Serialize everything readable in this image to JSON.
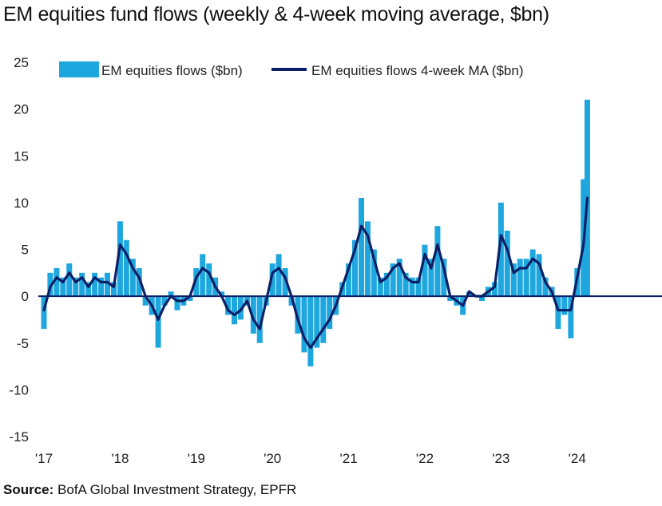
{
  "title": "EM equities fund flows (weekly & 4-week moving average, $bn)",
  "source": {
    "label": "Source:",
    "text": " BofA Global Investment Strategy, EPFR"
  },
  "chart_data": {
    "type": "bar+line",
    "ylim": [
      -15,
      25
    ],
    "yticks": [
      25,
      20,
      15,
      10,
      5,
      0,
      -5,
      -10,
      -15
    ],
    "x_tick_labels": [
      "'17",
      "'18",
      "'19",
      "'20",
      "'21",
      "'22",
      "'23",
      "'24"
    ],
    "x_tick_years": [
      2017,
      2018,
      2019,
      2020,
      2021,
      2022,
      2023,
      2024
    ],
    "xlim": [
      2017.0,
      2024.6
    ],
    "legend_position": "top",
    "colors": {
      "bars": "#1ea6df",
      "ma_line": "#0b1f66",
      "zero_line": "#0b1f66"
    },
    "series": [
      {
        "name": "EM equities flows ($bn)",
        "kind": "bar",
        "x": [
          2017.0,
          2017.083,
          2017.167,
          2017.25,
          2017.333,
          2017.417,
          2017.5,
          2017.583,
          2017.667,
          2017.75,
          2017.833,
          2017.917,
          2018.0,
          2018.083,
          2018.167,
          2018.25,
          2018.333,
          2018.417,
          2018.5,
          2018.583,
          2018.667,
          2018.75,
          2018.833,
          2018.917,
          2019.0,
          2019.083,
          2019.167,
          2019.25,
          2019.333,
          2019.417,
          2019.5,
          2019.583,
          2019.667,
          2019.75,
          2019.833,
          2019.917,
          2020.0,
          2020.083,
          2020.167,
          2020.25,
          2020.333,
          2020.417,
          2020.5,
          2020.583,
          2020.667,
          2020.75,
          2020.833,
          2020.917,
          2021.0,
          2021.083,
          2021.167,
          2021.25,
          2021.333,
          2021.417,
          2021.5,
          2021.583,
          2021.667,
          2021.75,
          2021.833,
          2021.917,
          2022.0,
          2022.083,
          2022.167,
          2022.25,
          2022.333,
          2022.417,
          2022.5,
          2022.583,
          2022.667,
          2022.75,
          2022.833,
          2022.917,
          2023.0,
          2023.083,
          2023.167,
          2023.25,
          2023.333,
          2023.417,
          2023.5,
          2023.583,
          2023.667,
          2023.75,
          2023.833,
          2023.917,
          2024.0,
          2024.083,
          2024.133
        ],
        "values": [
          -3.5,
          2.5,
          3.0,
          2.0,
          3.5,
          2.0,
          2.5,
          1.5,
          2.5,
          2.0,
          2.5,
          1.5,
          8.0,
          6.0,
          4.0,
          3.0,
          -1.0,
          -2.0,
          -5.5,
          -1.0,
          0.5,
          -1.5,
          -1.0,
          -0.5,
          3.0,
          4.5,
          3.5,
          2.0,
          0.5,
          -2.0,
          -3.0,
          -2.5,
          -1.0,
          -4.0,
          -5.0,
          -1.0,
          3.5,
          4.5,
          3.0,
          -1.0,
          -4.0,
          -6.0,
          -7.5,
          -5.5,
          -5.0,
          -3.5,
          -2.0,
          1.5,
          3.5,
          6.0,
          10.5,
          8.0,
          5.0,
          2.0,
          2.5,
          3.5,
          4.0,
          2.5,
          2.0,
          2.0,
          5.5,
          4.0,
          7.5,
          4.0,
          -0.5,
          -1.0,
          -2.0,
          0.5,
          0.0,
          -0.5,
          1.0,
          1.5,
          10.0,
          7.0,
          3.5,
          4.0,
          4.0,
          5.0,
          4.5,
          2.0,
          1.0,
          -3.5,
          -2.0,
          -4.5,
          3.0,
          12.5,
          21.0
        ]
      },
      {
        "name": "EM equities flows 4-week MA ($bn)",
        "kind": "line",
        "x": [
          2017.0,
          2017.083,
          2017.167,
          2017.25,
          2017.333,
          2017.417,
          2017.5,
          2017.583,
          2017.667,
          2017.75,
          2017.833,
          2017.917,
          2018.0,
          2018.083,
          2018.167,
          2018.25,
          2018.333,
          2018.417,
          2018.5,
          2018.583,
          2018.667,
          2018.75,
          2018.833,
          2018.917,
          2019.0,
          2019.083,
          2019.167,
          2019.25,
          2019.333,
          2019.417,
          2019.5,
          2019.583,
          2019.667,
          2019.75,
          2019.833,
          2019.917,
          2020.0,
          2020.083,
          2020.167,
          2020.25,
          2020.333,
          2020.417,
          2020.5,
          2020.583,
          2020.667,
          2020.75,
          2020.833,
          2020.917,
          2021.0,
          2021.083,
          2021.167,
          2021.25,
          2021.333,
          2021.417,
          2021.5,
          2021.583,
          2021.667,
          2021.75,
          2021.833,
          2021.917,
          2022.0,
          2022.083,
          2022.167,
          2022.25,
          2022.333,
          2022.417,
          2022.5,
          2022.583,
          2022.667,
          2022.75,
          2022.833,
          2022.917,
          2023.0,
          2023.083,
          2023.167,
          2023.25,
          2023.333,
          2023.417,
          2023.5,
          2023.583,
          2023.667,
          2023.75,
          2023.833,
          2023.917,
          2024.0,
          2024.083,
          2024.133
        ],
        "values": [
          -1.5,
          1.0,
          2.0,
          1.5,
          2.5,
          1.5,
          2.0,
          1.0,
          2.0,
          1.5,
          1.5,
          1.0,
          5.5,
          4.5,
          3.0,
          2.0,
          0.0,
          -1.0,
          -2.5,
          -1.0,
          0.0,
          -0.5,
          -0.5,
          0.0,
          2.0,
          3.0,
          2.5,
          1.0,
          0.0,
          -1.5,
          -2.0,
          -1.5,
          -0.5,
          -2.5,
          -3.5,
          -0.5,
          2.5,
          3.0,
          2.0,
          0.0,
          -2.5,
          -4.5,
          -5.5,
          -4.5,
          -3.5,
          -2.5,
          -1.0,
          1.0,
          3.0,
          5.0,
          7.5,
          6.5,
          4.0,
          1.5,
          2.0,
          3.0,
          3.5,
          2.0,
          1.5,
          1.5,
          4.5,
          3.0,
          5.5,
          3.0,
          0.0,
          -0.5,
          -1.0,
          0.5,
          0.0,
          0.0,
          0.5,
          1.0,
          6.5,
          5.0,
          2.5,
          3.0,
          3.0,
          4.0,
          3.5,
          1.5,
          0.5,
          -1.5,
          -1.5,
          -1.5,
          2.0,
          5.5,
          10.5
        ]
      }
    ]
  }
}
